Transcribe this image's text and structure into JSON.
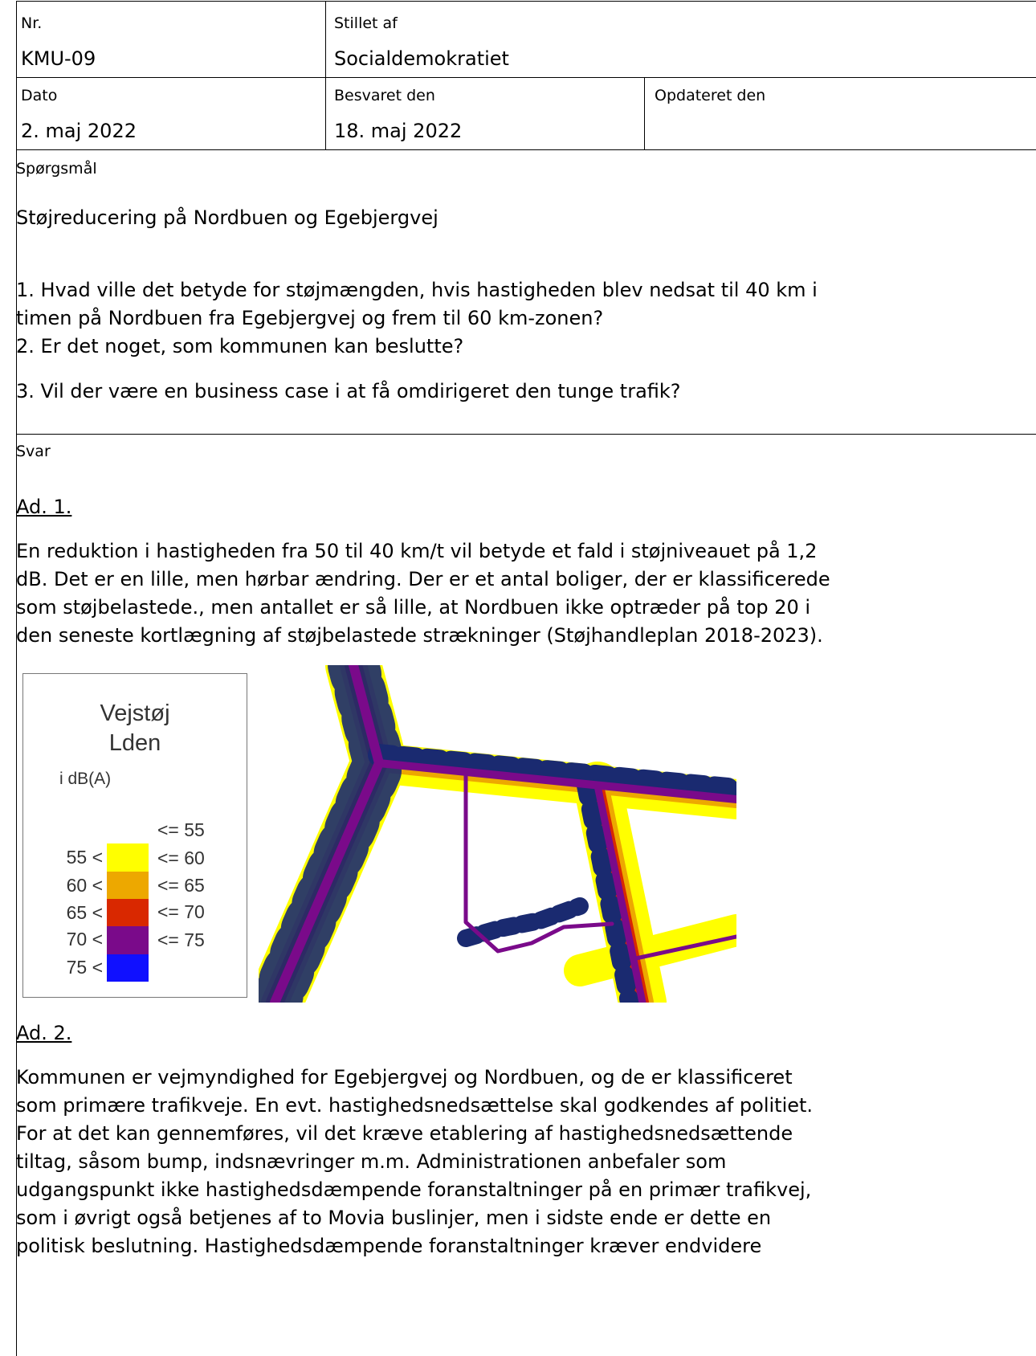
{
  "header": {
    "nr_label": "Nr.",
    "nr": "KMU-09",
    "stillet_label": "Stillet af",
    "stillet": "Socialdemokratiet",
    "dato_label": "Dato",
    "dato": "2. maj 2022",
    "besvaret_label": "Besvaret den",
    "besvaret": "18. maj 2022",
    "opdateret_label": "Opdateret den"
  },
  "question": {
    "label": "Spørgsmål",
    "title": "Støjreducering på Nordbuen og Egebjergvej",
    "items": [
      [
        "1. Hvad ville det betyde for støjmængden, hvis hastigheden blev nedsat til 40 km i",
        "timen på Nordbuen fra Egebjergvej og frem til 60 km-zonen?"
      ],
      [
        "2. Er det noget, som kommunen kan beslutte?"
      ],
      [
        "3. Vil der være en business case i at få omdirigeret  den tunge trafik?"
      ]
    ]
  },
  "answer": {
    "label": "Svar",
    "sections": [
      {
        "heading": "Ad. 1.",
        "lines": [
          "En reduktion i hastigheden fra 50 til 40 km/t vil betyde et fald i støjniveauet på 1,2",
          "dB. Det er en lille, men hørbar ændring. Der er et antal boliger, der er klassificerede",
          "som støjbelastede., men antallet er så lille, at Nordbuen ikke optræder på top 20 i",
          "den seneste kortlægning af støjbelastede strækninger (Støjhandleplan 2018-2023)."
        ]
      },
      {
        "heading": "Ad. 2.",
        "lines": [
          "Kommunen er vejmyndighed for Egebjergvej og Nordbuen, og de er klassificeret",
          "som primære trafikveje. En evt. hastighedsnedsættelse skal godkendes af politiet.",
          "For at det kan gennemføres, vil det kræve etablering af hastighedsnedsættende",
          "tiltag, såsom bump, indsnævringer m.m. Administrationen anbefaler som",
          "udgangspunkt ikke hastighedsdæmpende foranstaltninger på en primær trafikvej,",
          "som i øvrigt også betjenes af to Movia buslinjer, men i sidste ende er dette en",
          "politisk beslutning. Hastighedsdæmpende foranstaltninger kræver endvidere"
        ]
      }
    ]
  },
  "legend": {
    "title": "Vejstøj",
    "subtitle": "Lden",
    "unit": "i dB(A)",
    "low_labels": [
      "55 <",
      "60 <",
      "65 <",
      "70 <",
      "75 <"
    ],
    "high_labels": [
      "<= 55",
      "<= 60",
      "<= 65",
      "<= 70",
      "<= 75"
    ]
  }
}
